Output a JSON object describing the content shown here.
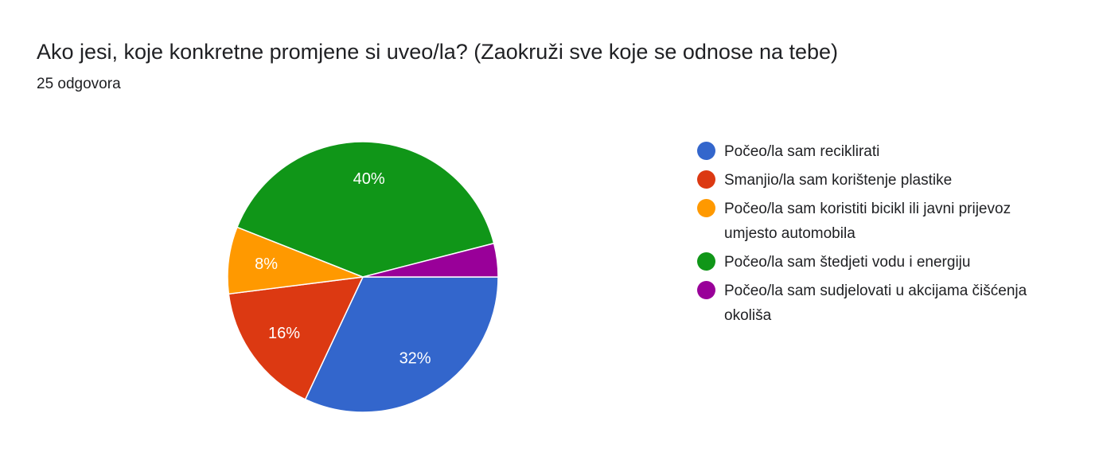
{
  "chart_data": {
    "type": "pie",
    "title": "Ako jesi, koje konkretne promjene si uveo/la? (Zaokruži sve koje se odnose na tebe)",
    "subtitle": "25 odgovora",
    "categories": [
      "Počeo/la sam reciklirati",
      "Smanjio/la sam korištenje plastike",
      "Počeo/la sam koristiti bicikl ili javni prijevoz umjesto automobila",
      "Počeo/la sam štedjeti vodu i energiju",
      "Počeo/la sam sudjelovati u akcijama čišćenja okoliša"
    ],
    "values": [
      32,
      16,
      8,
      40,
      4
    ],
    "value_labels": [
      "32%",
      "16%",
      "8%",
      "40%",
      null
    ],
    "colors": [
      "#3366cc",
      "#dc3912",
      "#ff9900",
      "#109618",
      "#990099"
    ],
    "legend": "right"
  }
}
